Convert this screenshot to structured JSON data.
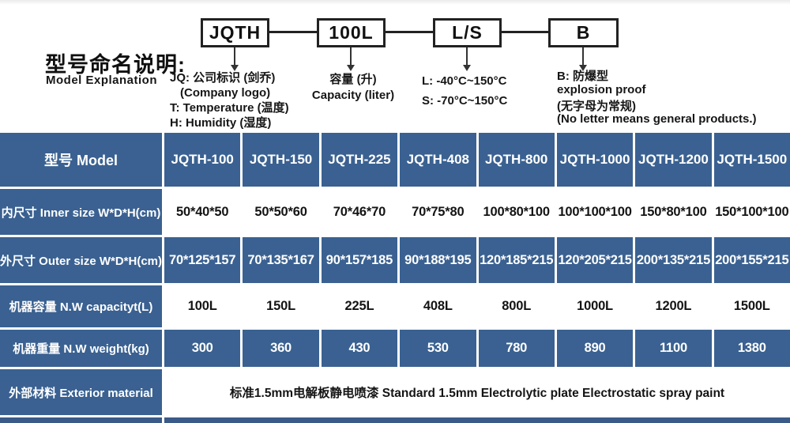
{
  "colors": {
    "table_blue": "#3a6191",
    "table_strip": "#3a5a88"
  },
  "diagram": {
    "title": "型号命名说明:",
    "subtitle": "Model Explanation",
    "boxes": {
      "b1": "JQTH",
      "b2": "100L",
      "b3": "L/S",
      "b4": "B"
    },
    "note_jq": {
      "l1": "JQ: 公司标识 (剑乔)",
      "l2": "(Company logo)",
      "l3": "T: Temperature (温度)",
      "l4": "H: Humidity (湿度)"
    },
    "note_capacity": {
      "l1": "容量 (升)",
      "l2": "Capacity (liter)"
    },
    "note_ls": {
      "l1": "L: -40°C~150°C",
      "l2": "S: -70°C~150°C"
    },
    "note_b": {
      "l1": "B: 防爆型",
      "l2": "explosion proof",
      "l3": "(无字母为常规)",
      "l4": "(No letter means general products.)"
    }
  },
  "table": {
    "header_label": "型号 Model",
    "models": [
      "JQTH-100",
      "JQTH-150",
      "JQTH-225",
      "JQTH-408",
      "JQTH-800",
      "JQTH-1000",
      "JQTH-1200",
      "JQTH-1500"
    ],
    "rows": [
      {
        "label": "内尺寸 Inner size W*D*H(cm)",
        "values": [
          "50*40*50",
          "50*50*60",
          "70*46*70",
          "70*75*80",
          "100*80*100",
          "100*100*100",
          "150*80*100",
          "150*100*100"
        ]
      },
      {
        "label": "外尺寸 Outer size W*D*H(cm)",
        "values": [
          "70*125*157",
          "70*135*167",
          "90*157*185",
          "90*188*195",
          "120*185*215",
          "120*205*215",
          "200*135*215",
          "200*155*215"
        ]
      },
      {
        "label": "机器容量 N.W capacityt(L)",
        "values": [
          "100L",
          "150L",
          "225L",
          "408L",
          "800L",
          "1000L",
          "1200L",
          "1500L"
        ]
      },
      {
        "label": "机器重量 N.W weight(kg)",
        "values": [
          "300",
          "360",
          "430",
          "530",
          "780",
          "890",
          "1100",
          "1380"
        ]
      },
      {
        "label": "外部材料 Exterior material",
        "merged_value": "标准1.5mm电解板静电喷漆  Standard 1.5mm Electrolytic plate Electrostatic spray paint"
      }
    ]
  }
}
